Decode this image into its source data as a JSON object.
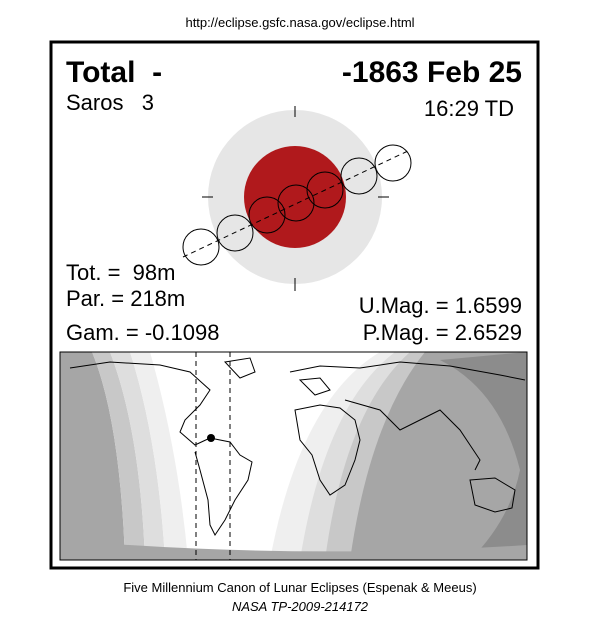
{
  "header": {
    "url": "http://eclipse.gsfc.nasa.gov/eclipse.html"
  },
  "eclipse": {
    "type": "Total  -",
    "date": "-1863 Feb 25",
    "saros": "Saros   3",
    "time": "16:29 TD",
    "duration_total": "Tot. =  98m",
    "duration_partial": "Par. = 218m",
    "gamma": "Gam. = -0.1098",
    "umbral_magnitude": "U.Mag. = 1.6599",
    "penumbral_magnitude": "P.Mag. = 2.6529"
  },
  "footer": {
    "line1": "Five Millennium Canon of Lunar Eclipses (Espenak & Meeus)",
    "line2": "NASA TP-2009-214172"
  }
}
